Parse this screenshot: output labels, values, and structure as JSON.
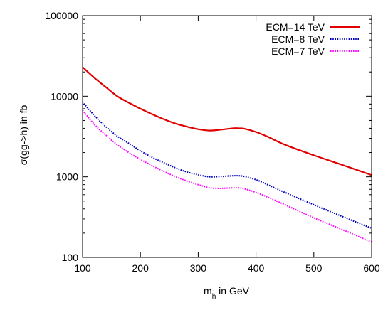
{
  "chart_data": {
    "type": "line",
    "xlabel_main": "m",
    "xlabel_sub": "h",
    "xlabel_rest": " in GeV",
    "ylabel": "σ(gg->h) in fb",
    "xlim": [
      100,
      600
    ],
    "ylim": [
      100,
      100000
    ],
    "y_scale": "log",
    "grid": false,
    "legend_position": "top-right",
    "x_ticks": [
      {
        "value": 100,
        "label": "100"
      },
      {
        "value": 200,
        "label": "200"
      },
      {
        "value": 300,
        "label": "300"
      },
      {
        "value": 400,
        "label": "400"
      },
      {
        "value": 500,
        "label": "500"
      },
      {
        "value": 600,
        "label": "600"
      }
    ],
    "y_ticks": [
      {
        "value": 100,
        "label": "100"
      },
      {
        "value": 1000,
        "label": "1000"
      },
      {
        "value": 10000,
        "label": "10000"
      },
      {
        "value": 100000,
        "label": "100000"
      }
    ],
    "x": [
      100,
      120,
      140,
      160,
      180,
      200,
      220,
      240,
      260,
      280,
      300,
      320,
      340,
      360,
      370,
      380,
      400,
      420,
      450,
      500,
      550,
      600
    ],
    "series": [
      {
        "name": "ECM=14 TeV",
        "color": "#e00000",
        "dash": "solid",
        "values": [
          23000,
          17000,
          13000,
          10000,
          8300,
          7000,
          6000,
          5200,
          4600,
          4200,
          3900,
          3750,
          3850,
          4000,
          4000,
          3950,
          3600,
          3150,
          2500,
          1850,
          1400,
          1050
        ]
      },
      {
        "name": "ECM=8 TeV",
        "color": "#0000c0",
        "dash": "dotted",
        "values": [
          8500,
          5800,
          4200,
          3200,
          2600,
          2100,
          1750,
          1500,
          1300,
          1150,
          1060,
          1000,
          1010,
          1030,
          1030,
          1010,
          920,
          800,
          640,
          450,
          320,
          230
        ]
      },
      {
        "name": "ECM=7 TeV",
        "color": "#ff00ff",
        "dash": "dotted",
        "values": [
          6700,
          4500,
          3300,
          2500,
          2000,
          1650,
          1380,
          1170,
          1010,
          890,
          800,
          730,
          720,
          730,
          730,
          710,
          640,
          560,
          450,
          310,
          220,
          155
        ]
      }
    ]
  }
}
